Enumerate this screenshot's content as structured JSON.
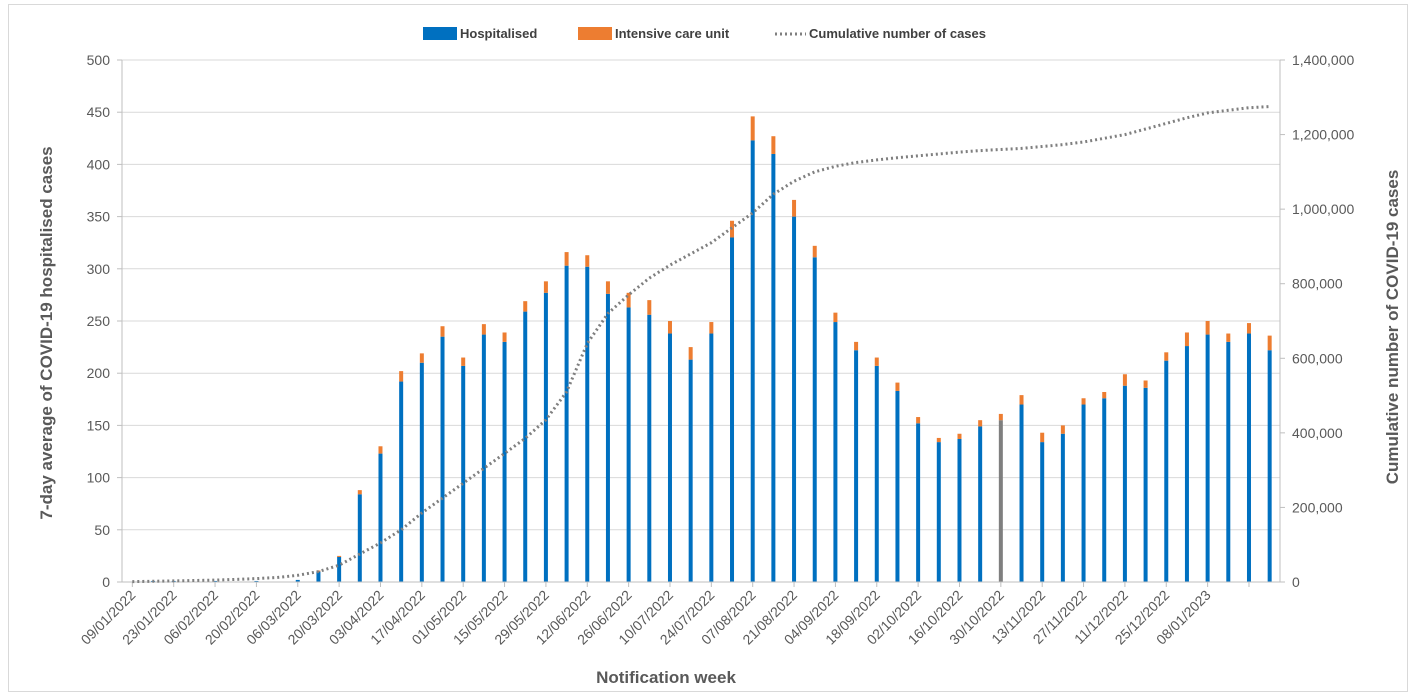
{
  "chart_data": {
    "type": "bar",
    "xlabel": "Notification week",
    "ylabel": "7-day average of COVID-19 hospitalised cases",
    "y2label": "Cumulative number of COVID-19 cases",
    "ylim": [
      0,
      500
    ],
    "y2lim": [
      0,
      1400000
    ],
    "yticks": [
      "0",
      "50",
      "100",
      "150",
      "200",
      "250",
      "300",
      "350",
      "400",
      "450",
      "500"
    ],
    "y2ticks": [
      "0",
      "200,000",
      "400,000",
      "600,000",
      "800,000",
      "1,000,000",
      "1,200,000",
      "1,400,000"
    ],
    "legend": {
      "position": "top-center",
      "hospitalised": "Hospitalised",
      "icu": "Intensive care unit",
      "cumulative": "Cumulative number of cases"
    },
    "colors": {
      "hospitalised": "#0070c0",
      "icu": "#ed7d31",
      "highlight": "#7f7f7f",
      "cumulative": "#7f7f7f",
      "grid": "#d9d9d9"
    },
    "stacked": true,
    "grid": true,
    "x_labels": [
      "09/01/2022",
      "23/01/2022",
      "06/02/2022",
      "20/02/2022",
      "06/03/2022",
      "20/03/2022",
      "03/04/2022",
      "17/04/2022",
      "01/05/2022",
      "15/05/2022",
      "29/05/2022",
      "12/06/2022",
      "26/06/2022",
      "10/07/2022",
      "24/07/2022",
      "07/08/2022",
      "21/08/2022",
      "04/09/2022",
      "18/09/2022",
      "02/10/2022",
      "16/10/2022",
      "30/10/2022",
      "13/11/2022",
      "27/11/2022",
      "11/12/2022",
      "25/12/2022",
      "08/01/2023"
    ],
    "label_every": 2,
    "highlight_index": 42,
    "series": [
      {
        "name": "Hospitalised",
        "values": [
          0,
          1,
          1,
          0,
          1,
          0,
          1,
          0,
          2,
          10,
          24,
          84,
          123,
          192,
          210,
          235,
          207,
          237,
          230,
          259,
          277,
          303,
          302,
          276,
          263,
          256,
          238,
          213,
          238,
          330,
          423,
          410,
          350,
          311,
          249,
          222,
          207,
          183,
          152,
          134,
          137,
          149,
          155,
          170,
          134,
          142,
          170,
          176,
          188,
          186,
          212,
          226,
          237,
          230,
          238,
          222
        ]
      },
      {
        "name": "Intensive care unit",
        "values": [
          0,
          0,
          0,
          0,
          0,
          0,
          0,
          0,
          0,
          1,
          1,
          4,
          7,
          10,
          9,
          10,
          8,
          10,
          9,
          10,
          11,
          13,
          11,
          12,
          14,
          14,
          12,
          12,
          11,
          16,
          23,
          17,
          16,
          11,
          9,
          8,
          8,
          8,
          6,
          4,
          5,
          6,
          6,
          9,
          9,
          8,
          6,
          6,
          11,
          7,
          8,
          13,
          13,
          8,
          10,
          14
        ]
      },
      {
        "name": "Cumulative number of cases",
        "values": [
          1000,
          2000,
          3000,
          4000,
          5000,
          7000,
          9000,
          12000,
          18000,
          28000,
          45000,
          75000,
          105000,
          140000,
          185000,
          225000,
          265000,
          305000,
          345000,
          385000,
          435000,
          510000,
          640000,
          720000,
          770000,
          815000,
          850000,
          880000,
          910000,
          950000,
          990000,
          1040000,
          1075000,
          1100000,
          1115000,
          1125000,
          1132000,
          1138000,
          1143000,
          1148000,
          1153000,
          1157000,
          1160000,
          1163000,
          1168000,
          1173000,
          1180000,
          1190000,
          1200000,
          1215000,
          1230000,
          1245000,
          1258000,
          1265000,
          1272000,
          1275000
        ]
      }
    ]
  }
}
